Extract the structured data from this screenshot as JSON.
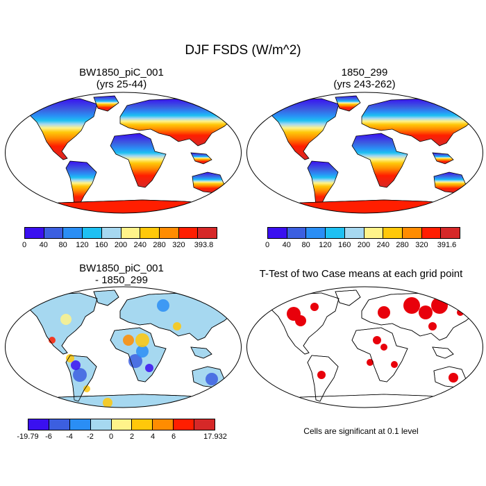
{
  "title": "DJF FSDS (W/m^2)",
  "panels": [
    {
      "title_line1": "BW1850_piC_001",
      "title_line2": "(yrs 25-44)"
    },
    {
      "title_line1": "1850_299",
      "title_line2": "(yrs 243-262)"
    },
    {
      "title_line1": "BW1850_piC_001",
      "title_line2": "- 1850_299"
    },
    {
      "title_line1": "T-Test of two Case means at each grid point"
    }
  ],
  "colorbars": [
    {
      "labels": [
        "0",
        "40",
        "80",
        "120",
        "160",
        "200",
        "240",
        "280",
        "320",
        "393.8"
      ],
      "colors": [
        "#3a10f0",
        "#3c5fe0",
        "#2a8ef5",
        "#1ec0f2",
        "#a6d8f0",
        "#fff38a",
        "#ffc80a",
        "#ff8c00",
        "#ff1e00",
        "#d62828"
      ]
    },
    {
      "labels": [
        "0",
        "40",
        "80",
        "120",
        "160",
        "200",
        "240",
        "280",
        "320",
        "391.6"
      ],
      "colors": [
        "#3a10f0",
        "#3c5fe0",
        "#2a8ef5",
        "#1ec0f2",
        "#a6d8f0",
        "#fff38a",
        "#ffc80a",
        "#ff8c00",
        "#ff1e00",
        "#d62828"
      ]
    },
    {
      "labels": [
        "-19.79",
        "-6",
        "-4",
        "-2",
        "0",
        "2",
        "4",
        "6",
        "17.932"
      ],
      "colors": [
        "#3a10f0",
        "#3c5fe0",
        "#2a8ef5",
        "#a6d8f0",
        "#fff38a",
        "#ffc80a",
        "#ff8c00",
        "#ff1e00",
        "#d62828"
      ]
    }
  ],
  "note": "Cells are significant at 0.1 level",
  "legend_colors": {
    "significant": "#e8000b",
    "land_outline": "#000000"
  }
}
